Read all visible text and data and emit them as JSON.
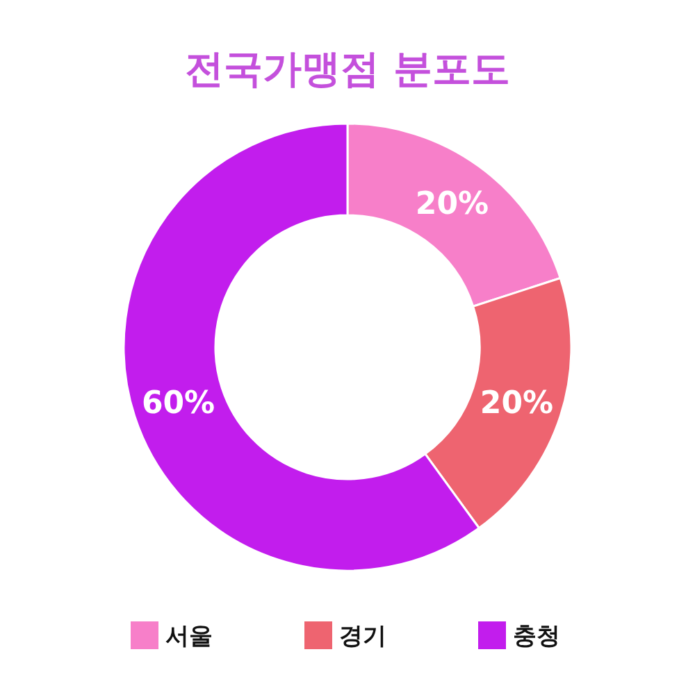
{
  "chart_data": {
    "type": "donut",
    "title": "전국가맹점 분포도",
    "categories": [
      "서울",
      "경기",
      "충청"
    ],
    "values": [
      20,
      20,
      60
    ],
    "value_labels": [
      "20%",
      "20%",
      "60%"
    ],
    "colors": [
      "#f77fc9",
      "#ee6470",
      "#c21ded"
    ],
    "legend": "bottom"
  }
}
